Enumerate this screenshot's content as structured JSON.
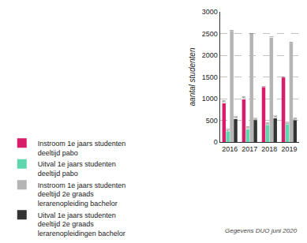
{
  "chart_data": {
    "type": "bar",
    "categories": [
      "2016",
      "2017",
      "2018",
      "2019"
    ],
    "series": [
      {
        "name": "Instroom 1e jaars studenten deeltijd pabo",
        "color": "#d81e6a",
        "values": [
          891,
          981,
          1263,
          1486
        ]
      },
      {
        "name": "Uitval 1e jaars studenten deeltijd pabo",
        "color": "#5fd6ae",
        "values": [
          247,
          292,
          391,
          410
        ]
      },
      {
        "name": "Instroom 1e jaars studenten deeltijd 2e graads lerarenopleiding bachelor",
        "color": "#b5b5b5",
        "values": [
          2558,
          2491,
          2403,
          2286
        ]
      },
      {
        "name": "Uitval 1e jaars studenten deeltijd 2e graads lerarenopleidingen bachelor",
        "color": "#333333",
        "values": [
          528,
          506,
          546,
          499
        ]
      }
    ],
    "ylabel": "aantal studenten",
    "ylim": [
      0,
      3000
    ],
    "yticks": [
      0,
      500,
      1000,
      1500,
      2000,
      2500,
      3000
    ],
    "grid": true,
    "data_labels": true,
    "legend": "bottom",
    "annotations": [
      "Gegevens DUO juni 2020"
    ]
  }
}
